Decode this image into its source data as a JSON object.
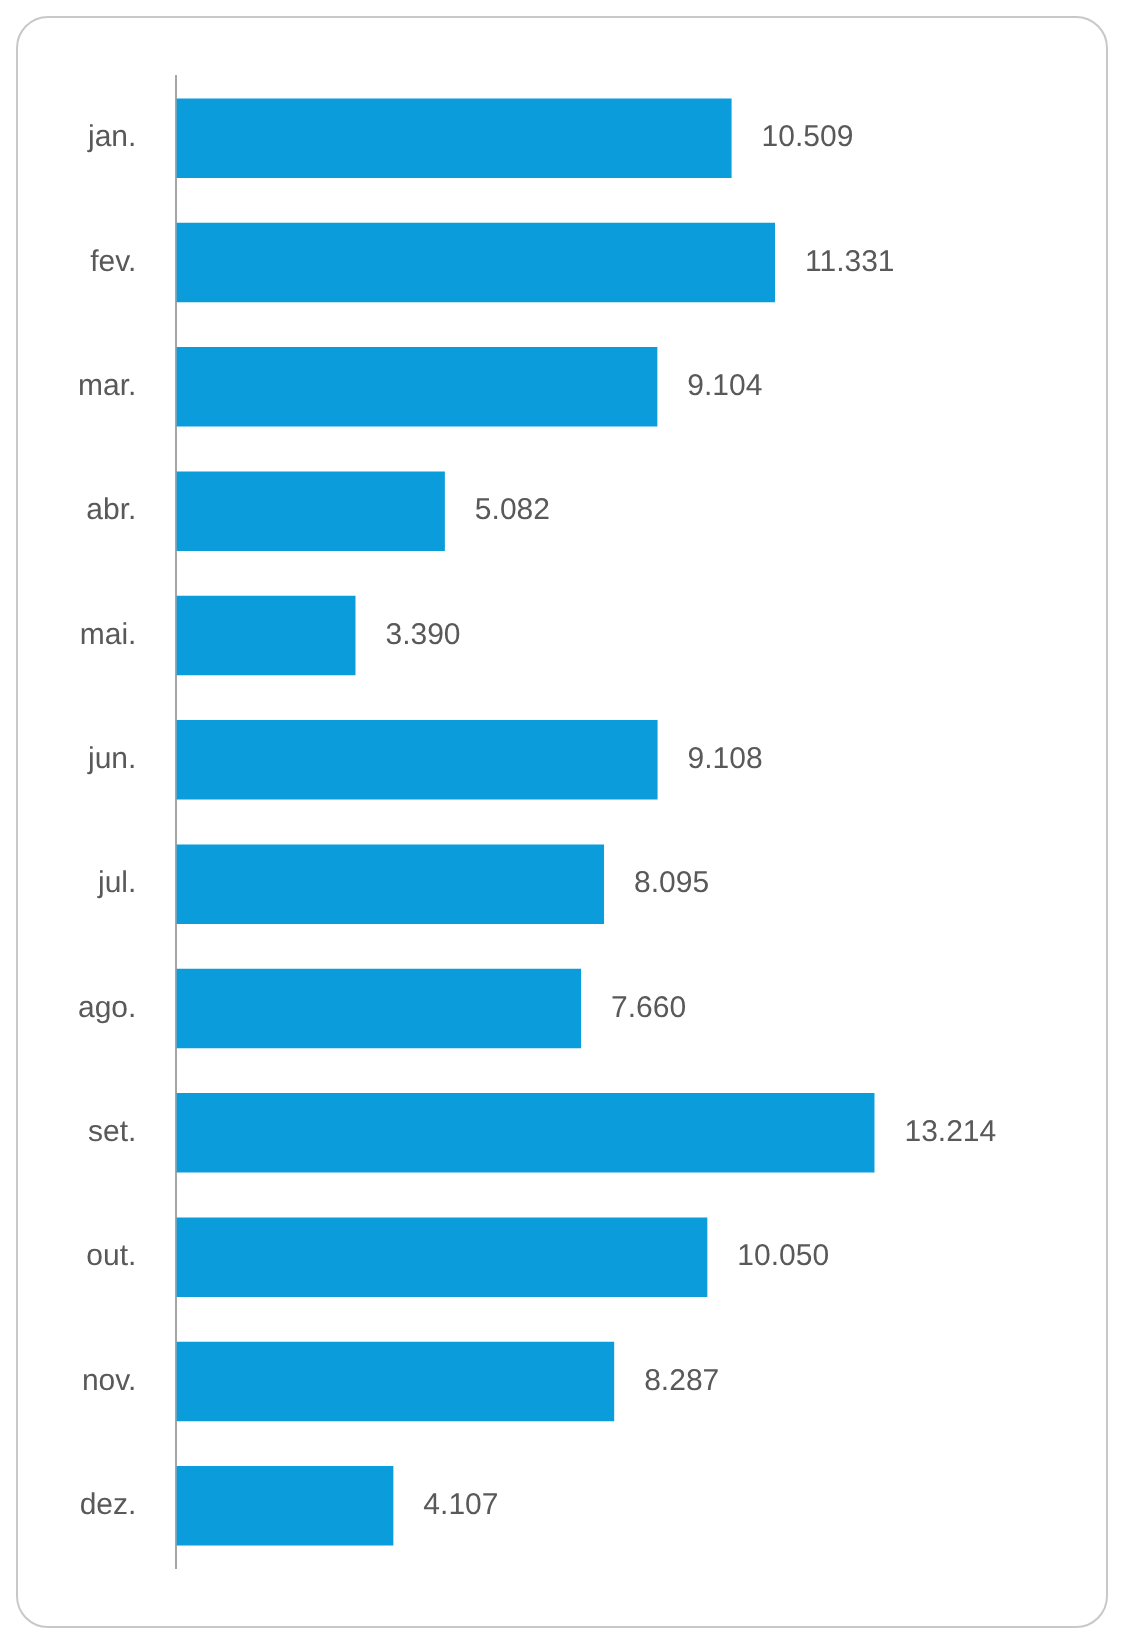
{
  "chart_data": {
    "type": "bar",
    "orientation": "horizontal",
    "categories": [
      "jan.",
      "fev.",
      "mar.",
      "abr.",
      "mai.",
      "jun.",
      "jul.",
      "ago.",
      "set.",
      "out.",
      "nov.",
      "dez."
    ],
    "values": [
      10509,
      11331,
      9104,
      5082,
      3390,
      9108,
      8095,
      7660,
      13214,
      10050,
      8287,
      4107
    ],
    "value_labels": [
      "10.509",
      "11.331",
      "9.104",
      "5.082",
      "3.390",
      "9.108",
      "8.095",
      "7.660",
      "13.214",
      "10.050",
      "8.287",
      "4.107"
    ],
    "color": "#0a9cdb",
    "tick_labels": "y",
    "grid": false,
    "legend": false
  }
}
